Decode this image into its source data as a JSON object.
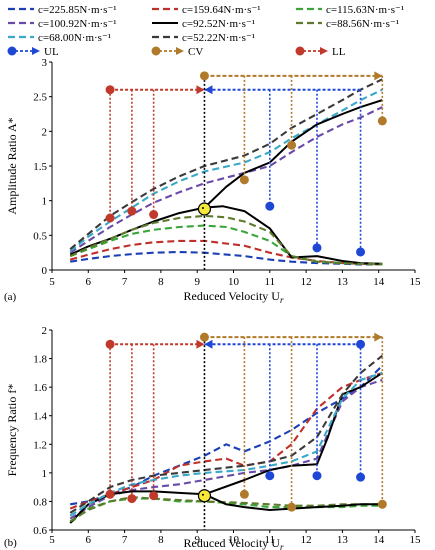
{
  "legend": {
    "entries": [
      {
        "label": "c=225.85N·m·s⁻¹",
        "color": "#1c3fb5",
        "dash": "dash"
      },
      {
        "label": "c=159.64N·m·s⁻¹",
        "color": "#c0302a",
        "dash": "dash"
      },
      {
        "label": "c=115.63N·m·s⁻¹",
        "color": "#3aa63a",
        "dash": "dash"
      },
      {
        "label": "c=100.92N·m·s⁻¹",
        "color": "#6a4aa8",
        "dash": "dash"
      },
      {
        "label": "c=92.52N·m·s⁻¹",
        "color": "#000000",
        "dash": "solid"
      },
      {
        "label": "c=88.56N·m·s⁻¹",
        "color": "#5e7a2c",
        "dash": "dash"
      },
      {
        "label": "c=68.00N·m·s⁻¹",
        "color": "#3aa8c8",
        "dash": "dash"
      },
      {
        "label": "c=52.22N·m·s⁻¹",
        "color": "#3a3a3a",
        "dash": "dash"
      }
    ],
    "markers": [
      {
        "label": "UL",
        "color": "#1f47d6"
      },
      {
        "label": "CV",
        "color": "#b07a2a"
      },
      {
        "label": "LL",
        "color": "#c0392b"
      }
    ]
  },
  "chart_data": [
    {
      "type": "line",
      "panel_label": "(a)",
      "xlabel": "Reduced Velocity U",
      "xlabel_sub": "r",
      "ylabel": "Amplitude Ratio A*",
      "xlim": [
        5,
        15
      ],
      "ylim": [
        0,
        3
      ],
      "xticks": [
        "5",
        "6",
        "7",
        "8",
        "9",
        "10",
        "11",
        "12",
        "13",
        "14",
        "15"
      ],
      "yticks": [
        "0",
        "0.5",
        "1",
        "1.5",
        "2",
        "2.5",
        "3"
      ],
      "series": [
        {
          "name": "c=225.85N·m·s⁻¹",
          "color": "#1c3fb5",
          "dash": "dash",
          "x": [
            5.5,
            6,
            6.6,
            7.2,
            7.8,
            8.5,
            9.2,
            10.3,
            11.0,
            11.6,
            12.3,
            13.0,
            13.5,
            14.1
          ],
          "y": [
            0.12,
            0.16,
            0.2,
            0.23,
            0.25,
            0.26,
            0.25,
            0.2,
            0.15,
            0.12,
            0.1,
            0.09,
            0.08,
            0.08
          ]
        },
        {
          "name": "c=159.64N·m·s⁻¹",
          "color": "#c0302a",
          "dash": "dash",
          "x": [
            5.5,
            6,
            6.6,
            7.2,
            7.8,
            8.5,
            9.2,
            10.3,
            11.0,
            11.6,
            12.3,
            13.0,
            13.5,
            14.1
          ],
          "y": [
            0.15,
            0.22,
            0.3,
            0.36,
            0.4,
            0.42,
            0.42,
            0.35,
            0.25,
            0.18,
            0.13,
            0.1,
            0.09,
            0.08
          ]
        },
        {
          "name": "c=115.63N·m·s⁻¹",
          "color": "#3aa63a",
          "dash": "dash",
          "x": [
            5.5,
            6,
            6.6,
            7.2,
            7.8,
            8.5,
            9.2,
            9.8,
            10.3,
            11.0,
            11.6,
            12.3,
            13.0,
            13.5,
            14.1
          ],
          "y": [
            0.2,
            0.3,
            0.42,
            0.52,
            0.58,
            0.62,
            0.64,
            0.62,
            0.55,
            0.42,
            0.2,
            0.12,
            0.1,
            0.09,
            0.08
          ]
        },
        {
          "name": "c=100.92N·m·s⁻¹",
          "color": "#6a4aa8",
          "dash": "dash",
          "x": [
            5.5,
            6,
            6.6,
            7.2,
            7.8,
            8.5,
            9.2,
            10.3,
            11.0,
            11.6,
            12.3,
            13.0,
            13.5,
            14.1
          ],
          "y": [
            0.25,
            0.42,
            0.62,
            0.8,
            0.97,
            1.12,
            1.25,
            1.4,
            1.5,
            1.7,
            1.92,
            2.1,
            2.2,
            2.35
          ]
        },
        {
          "name": "c=92.52N·m·s⁻¹",
          "color": "#000000",
          "dash": "solid",
          "x": [
            5.5,
            6,
            6.6,
            7.2,
            7.8,
            8.5,
            9.2,
            9.7,
            10.3,
            11.0,
            11.6,
            12.3,
            13.0,
            13.5,
            14.1
          ],
          "y": [
            0.22,
            0.34,
            0.45,
            0.58,
            0.7,
            0.82,
            0.9,
            0.92,
            0.85,
            0.6,
            0.18,
            0.2,
            0.13,
            0.1,
            0.09
          ]
        },
        {
          "name": "c=88.56N·m·s⁻¹",
          "color": "#5e7a2c",
          "dash": "dash",
          "x": [
            5.5,
            6,
            6.6,
            7.2,
            7.8,
            8.5,
            9.2,
            9.8,
            10.3,
            11.0,
            11.6,
            12.3,
            13.0,
            13.5,
            14.1
          ],
          "y": [
            0.2,
            0.32,
            0.45,
            0.58,
            0.68,
            0.75,
            0.78,
            0.76,
            0.7,
            0.55,
            0.2,
            0.12,
            0.1,
            0.09,
            0.09
          ]
        },
        {
          "name": "c=68.00N·m·s⁻¹",
          "color": "#3aa8c8",
          "dash": "dash",
          "x": [
            5.5,
            6,
            6.6,
            7.2,
            7.8,
            8.5,
            9.2,
            10.3,
            11.0,
            11.6,
            12.3,
            13.0,
            13.5,
            14.1
          ],
          "y": [
            0.27,
            0.48,
            0.7,
            0.9,
            1.1,
            1.28,
            1.42,
            1.55,
            1.7,
            1.9,
            2.1,
            2.3,
            2.45,
            2.6
          ]
        },
        {
          "name": "c=52.22N·m·s⁻¹",
          "color": "#3a3a3a",
          "dash": "dash",
          "x": [
            5.5,
            6,
            6.6,
            7.2,
            7.8,
            8.5,
            9.2,
            10.3,
            11.0,
            11.6,
            12.3,
            13.0,
            13.5,
            14.1
          ],
          "y": [
            0.3,
            0.52,
            0.78,
            0.98,
            1.17,
            1.35,
            1.5,
            1.65,
            1.82,
            2.05,
            2.25,
            2.45,
            2.6,
            2.75
          ]
        },
        {
          "name": "c=92.52 upper",
          "color": "#000000",
          "dash": "solid",
          "x": [
            9.2,
            9.8,
            10.3,
            11.0,
            11.6,
            12.3,
            13.0,
            13.5,
            14.1
          ],
          "y": [
            0.9,
            1.2,
            1.4,
            1.55,
            1.85,
            2.1,
            2.25,
            2.35,
            2.45
          ]
        }
      ],
      "points": {
        "UL": [
          {
            "x": 11.0,
            "y": 0.92
          },
          {
            "x": 12.3,
            "y": 0.32
          },
          {
            "x": 13.5,
            "y": 0.26
          }
        ],
        "CV": [
          {
            "x": 9.2,
            "y": 2.8
          },
          {
            "x": 10.3,
            "y": 1.3
          },
          {
            "x": 11.6,
            "y": 1.8
          },
          {
            "x": 14.1,
            "y": 2.15
          }
        ],
        "LL": [
          {
            "x": 6.6,
            "y": 2.6
          },
          {
            "x": 6.6,
            "y": 0.75
          },
          {
            "x": 7.2,
            "y": 0.85
          },
          {
            "x": 7.8,
            "y": 0.8
          }
        ],
        "yellow": {
          "x": 9.2,
          "y": 0.88
        }
      },
      "arrows": {
        "UL": {
          "y": 2.6,
          "x_from": 13.5,
          "x_to": 9.2,
          "drops": [
            11.0,
            12.3,
            13.5
          ]
        },
        "CV": {
          "y": 2.8,
          "x_from": 9.2,
          "x_to": 14.1,
          "drops": [
            10.3,
            11.6,
            14.1
          ]
        },
        "LL": {
          "y": 2.6,
          "x_from": 6.6,
          "x_to": 9.2,
          "drops": [
            6.6,
            7.2,
            7.8
          ]
        }
      }
    },
    {
      "type": "line",
      "panel_label": "(b)",
      "xlabel": "Reduced Velocity U",
      "xlabel_sub": "r",
      "ylabel": "Frequency Ratio f*",
      "xlim": [
        5,
        15
      ],
      "ylim": [
        0.6,
        2
      ],
      "xticks": [
        "5",
        "6",
        "7",
        "8",
        "9",
        "10",
        "11",
        "12",
        "13",
        "14",
        "15"
      ],
      "yticks": [
        "0.6",
        "0.8",
        "1",
        "1.2",
        "1.4",
        "1.6",
        "1.8",
        "2"
      ],
      "series": [
        {
          "name": "c=225.85N·m·s⁻¹",
          "color": "#1c3fb5",
          "dash": "dash",
          "x": [
            5.5,
            6,
            6.6,
            7.2,
            7.8,
            8.5,
            9.2,
            9.8,
            10.3,
            11.0,
            11.6,
            12.3,
            13.0,
            13.5,
            14.1
          ],
          "y": [
            0.78,
            0.8,
            0.85,
            0.9,
            0.98,
            1.05,
            1.12,
            1.2,
            1.15,
            1.22,
            1.3,
            1.42,
            1.52,
            1.6,
            1.75
          ]
        },
        {
          "name": "c=159.64N·m·s⁻¹",
          "color": "#c0302a",
          "dash": "dash",
          "x": [
            5.5,
            6,
            6.6,
            7.2,
            7.8,
            8.5,
            9.2,
            9.8,
            10.3,
            11.0,
            11.6,
            12.3,
            13.0,
            13.5,
            14.1
          ],
          "y": [
            0.75,
            0.8,
            0.85,
            0.9,
            0.95,
            1.05,
            1.08,
            1.1,
            1.05,
            1.08,
            1.2,
            1.45,
            1.6,
            1.65,
            1.7
          ]
        },
        {
          "name": "c=115.63N·m·s⁻¹",
          "color": "#3aa63a",
          "dash": "dash",
          "x": [
            5.5,
            6,
            6.6,
            7.2,
            7.8,
            8.5,
            9.2,
            10.3,
            11.0,
            11.6,
            12.3,
            13.0,
            13.5,
            14.1
          ],
          "y": [
            0.65,
            0.75,
            0.8,
            0.82,
            0.82,
            0.8,
            0.8,
            0.78,
            0.76,
            0.76,
            0.76,
            0.76,
            0.77,
            0.77
          ]
        },
        {
          "name": "c=100.92N·m·s⁻¹",
          "color": "#6a4aa8",
          "dash": "dash",
          "x": [
            5.5,
            6,
            6.6,
            7.2,
            7.8,
            8.5,
            9.2,
            10.3,
            11.0,
            11.6,
            12.3,
            13.0,
            13.5,
            14.1
          ],
          "y": [
            0.68,
            0.76,
            0.84,
            0.88,
            0.9,
            0.92,
            0.95,
            1.0,
            1.02,
            1.05,
            1.1,
            1.5,
            1.6,
            1.65
          ]
        },
        {
          "name": "c=92.52N·m·s⁻¹",
          "color": "#000000",
          "dash": "solid",
          "x": [
            5.5,
            6,
            6.6,
            7.2,
            7.8,
            8.5,
            9.2,
            10.3,
            11.0,
            11.6,
            12.3,
            12.6,
            13.0,
            13.5,
            14.1
          ],
          "y": [
            0.65,
            0.78,
            0.85,
            0.87,
            0.87,
            0.86,
            0.85,
            0.95,
            1.02,
            1.05,
            1.06,
            1.25,
            1.55,
            1.6,
            1.7
          ]
        },
        {
          "name": "c=88.56N·m·s⁻¹",
          "color": "#5e7a2c",
          "dash": "dash",
          "x": [
            5.5,
            6,
            6.6,
            7.2,
            7.8,
            8.5,
            9.2,
            10.3,
            11.0,
            11.6,
            12.3,
            13.0,
            13.5,
            14.1
          ],
          "y": [
            0.66,
            0.74,
            0.8,
            0.83,
            0.82,
            0.81,
            0.8,
            0.79,
            0.78,
            0.77,
            0.77,
            0.78,
            0.78,
            0.78
          ]
        },
        {
          "name": "c=68.00N·m·s⁻¹",
          "color": "#3aa8c8",
          "dash": "dash",
          "x": [
            5.5,
            6,
            6.6,
            7.2,
            7.8,
            8.5,
            9.2,
            10.3,
            11.0,
            11.6,
            12.3,
            13.0,
            13.5,
            14.1
          ],
          "y": [
            0.7,
            0.78,
            0.86,
            0.92,
            0.95,
            0.98,
            1.0,
            1.02,
            1.05,
            1.08,
            1.15,
            1.52,
            1.65,
            1.7
          ]
        },
        {
          "name": "c=52.22N·m·s⁻¹",
          "color": "#3a3a3a",
          "dash": "dash",
          "x": [
            5.5,
            6,
            6.6,
            7.2,
            7.8,
            8.5,
            9.2,
            10.3,
            11.0,
            11.6,
            12.3,
            13.0,
            13.5,
            14.1
          ],
          "y": [
            0.72,
            0.8,
            0.9,
            0.95,
            0.98,
            1.0,
            1.02,
            1.05,
            1.08,
            1.12,
            1.25,
            1.55,
            1.7,
            1.82
          ]
        },
        {
          "name": "c=92.52 lower",
          "color": "#000000",
          "dash": "solid",
          "x": [
            9.2,
            9.8,
            10.3,
            11.0,
            11.6,
            12.3,
            13.0,
            13.5,
            14.1
          ],
          "y": [
            0.85,
            0.78,
            0.76,
            0.74,
            0.75,
            0.76,
            0.77,
            0.78,
            0.78
          ]
        }
      ],
      "points": {
        "UL": [
          {
            "x": 11.0,
            "y": 0.98
          },
          {
            "x": 12.3,
            "y": 0.98
          },
          {
            "x": 13.5,
            "y": 0.97
          },
          {
            "x": 13.5,
            "y": 1.9
          }
        ],
        "CV": [
          {
            "x": 9.2,
            "y": 1.95
          },
          {
            "x": 10.3,
            "y": 0.85
          },
          {
            "x": 11.6,
            "y": 0.76
          },
          {
            "x": 14.1,
            "y": 0.78
          }
        ],
        "LL": [
          {
            "x": 6.6,
            "y": 1.9
          },
          {
            "x": 6.6,
            "y": 0.85
          },
          {
            "x": 7.2,
            "y": 0.82
          },
          {
            "x": 7.8,
            "y": 0.84
          }
        ],
        "yellow": {
          "x": 9.2,
          "y": 0.84
        }
      },
      "arrows": {
        "UL": {
          "y": 1.9,
          "x_from": 13.5,
          "x_to": 9.2,
          "drops": [
            11.0,
            12.3,
            13.5
          ]
        },
        "CV": {
          "y": 1.95,
          "x_from": 9.2,
          "x_to": 14.1,
          "drops": [
            10.3,
            11.6,
            14.1
          ]
        },
        "LL": {
          "y": 1.9,
          "x_from": 6.6,
          "x_to": 9.2,
          "drops": [
            6.6,
            7.2,
            7.8
          ]
        }
      }
    }
  ]
}
